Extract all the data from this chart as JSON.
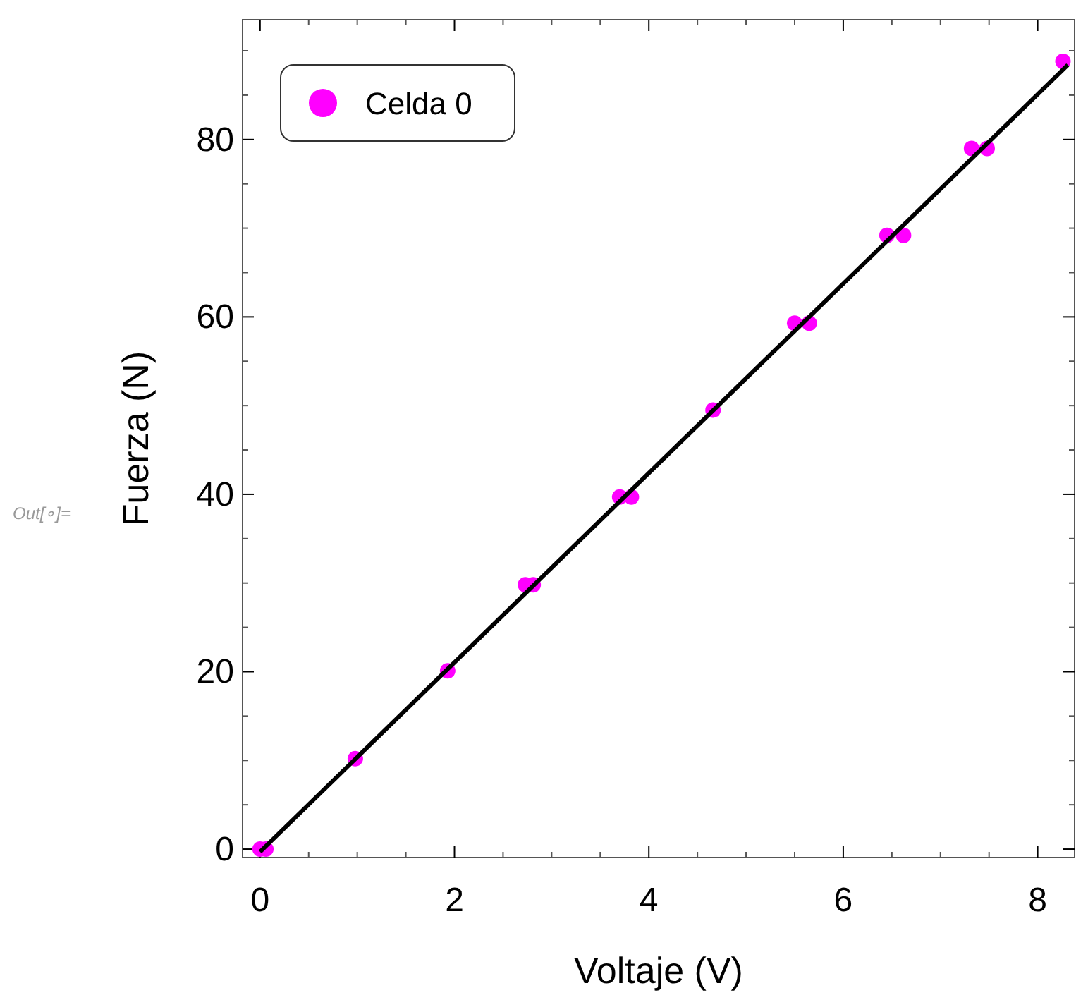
{
  "chart_data": {
    "type": "scatter",
    "xlabel": "Voltaje (V)",
    "ylabel": "Fuerza (N)",
    "annotations": [
      "Out[∘]="
    ],
    "xlim": [
      -0.18,
      8.38
    ],
    "ylim": [
      -0.95,
      93.5
    ],
    "xticks": [
      0,
      2,
      4,
      6,
      8
    ],
    "yticks": [
      0,
      20,
      40,
      60,
      80
    ],
    "grid": false,
    "legend": "top left",
    "marker": "circle",
    "series": [
      {
        "name": "Celda 0",
        "color": "#ff00ff",
        "x": [
          0,
          0.06,
          0.98,
          1.93,
          2.73,
          2.81,
          3.7,
          3.82,
          4.66,
          5.5,
          5.65,
          6.45,
          6.62,
          7.32,
          7.48,
          8.26
        ],
        "values": [
          0,
          0,
          10.2,
          20.1,
          29.8,
          29.8,
          39.7,
          39.7,
          49.5,
          59.3,
          59.3,
          69.2,
          69.2,
          79,
          79,
          88.8
        ]
      },
      {
        "type": "line",
        "color": "#000000",
        "marker": "none",
        "line_style": "solid",
        "x": [
          0,
          8.31
        ],
        "values": [
          -0.3,
          88.4
        ]
      }
    ]
  }
}
